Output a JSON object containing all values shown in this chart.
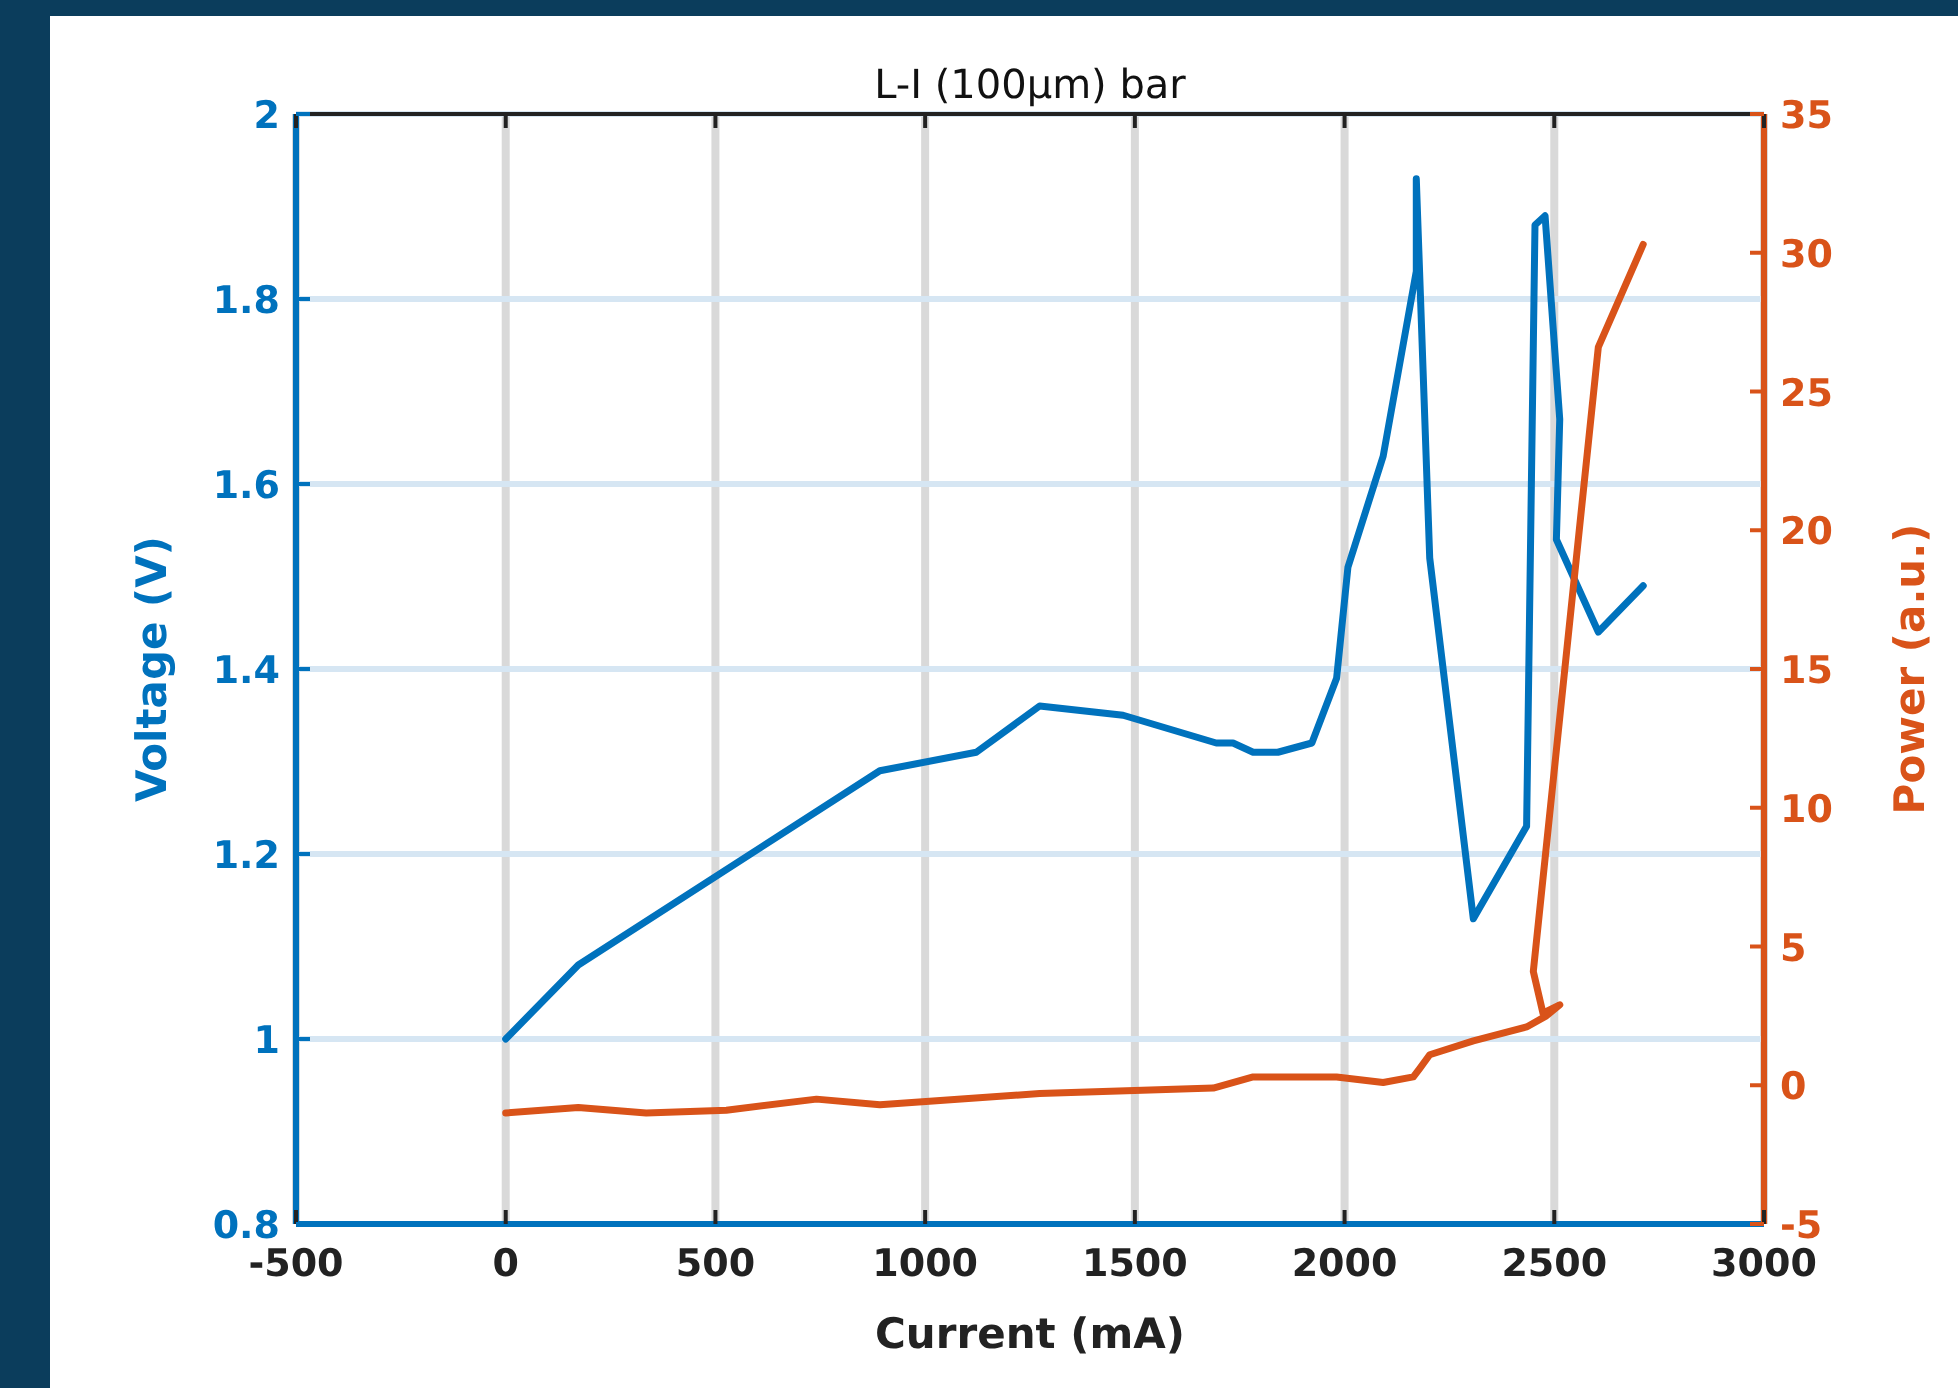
{
  "chart_data": {
    "type": "line",
    "title": "L-I (100µm) bar",
    "xlabel": "Current (mA)",
    "ylabel": "Voltage (V)",
    "y2label": "Power (a.u.)",
    "xlim": [
      -500,
      3000
    ],
    "xticks": [
      -500,
      0,
      500,
      1000,
      1500,
      2000,
      2500,
      3000
    ],
    "ylim": [
      0.8,
      2
    ],
    "yticks": [
      0.8,
      1,
      1.2,
      1.4,
      1.6,
      1.8,
      2
    ],
    "y2lim": [
      -5,
      35
    ],
    "y2ticks": [
      -5,
      0,
      5,
      10,
      15,
      20,
      25,
      30,
      35
    ],
    "grid": true,
    "marker": "none",
    "line_style": "solid",
    "series": [
      {
        "color": "#0072bd",
        "axis": "y",
        "x": [
          0,
          173,
          892,
          1122,
          1273,
          1472,
          1694,
          1734,
          1782,
          1841,
          1922,
          1981,
          2008,
          2092,
          2171,
          2171,
          2203,
          2307,
          2434,
          2454,
          2478,
          2513,
          2505,
          2605,
          2712
        ],
        "values": [
          1.0,
          1.08,
          1.29,
          1.31,
          1.36,
          1.35,
          1.32,
          1.32,
          1.31,
          1.31,
          1.32,
          1.39,
          1.51,
          1.63,
          1.83,
          1.93,
          1.52,
          1.13,
          1.23,
          1.88,
          1.89,
          1.67,
          1.54,
          1.44,
          1.49
        ]
      },
      {
        "color": "#d95319",
        "axis": "y2",
        "x": [
          0,
          173,
          335,
          526,
          741,
          892,
          1273,
          1687,
          1782,
          1981,
          2092,
          2164,
          2179,
          2203,
          2307,
          2434,
          2481,
          2513,
          2473,
          2450,
          2605,
          2712
        ],
        "values": [
          -1.0,
          -0.8,
          -1.0,
          -0.9,
          -0.5,
          -0.7,
          -0.3,
          -0.1,
          0.3,
          0.3,
          0.1,
          0.3,
          0.6,
          1.1,
          1.6,
          2.1,
          2.5,
          2.9,
          2.6,
          4.1,
          26.6,
          30.3
        ]
      }
    ]
  }
}
